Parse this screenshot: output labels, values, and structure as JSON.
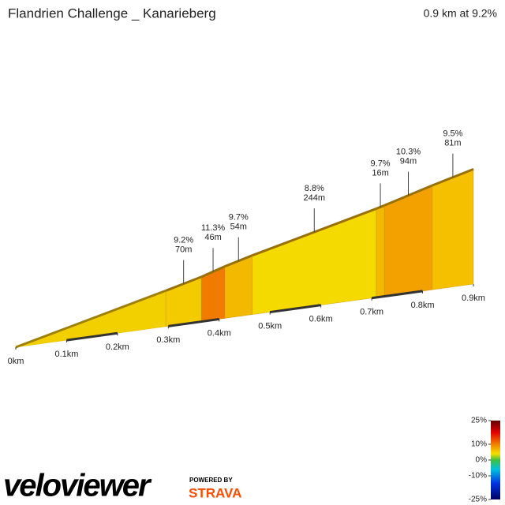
{
  "chart_data": {
    "type": "profile",
    "title": "Flandrien Challenge _ Kanarieberg",
    "subtitle": "0.9 km at 9.2%",
    "xticks": [
      {
        "value": 0,
        "label": "0km"
      },
      {
        "value": 100,
        "label": "0.1km"
      },
      {
        "value": 200,
        "label": "0.2km"
      },
      {
        "value": 300,
        "label": "0.3km"
      },
      {
        "value": 400,
        "label": "0.4km"
      },
      {
        "value": 500,
        "label": "0.5km"
      },
      {
        "value": 600,
        "label": "0.6km"
      },
      {
        "value": 700,
        "label": "0.7km"
      },
      {
        "value": 800,
        "label": "0.8km"
      },
      {
        "value": 900,
        "label": "0.9km"
      }
    ],
    "xlim": [
      0,
      900
    ],
    "segments": {
      "gradients": [
        9.2,
        11.3,
        9.7,
        8.8,
        9.7,
        10.3,
        9.5
      ],
      "gradient_labels": [
        "9.2%",
        "11.3%",
        "9.7%",
        "8.8%",
        "9.7%",
        "10.3%",
        "9.5%"
      ],
      "lengths": [
        70,
        46,
        54,
        244,
        16,
        94,
        81
      ],
      "length_labels": [
        "70m",
        "46m",
        "54m",
        "244m",
        "16m",
        "94m",
        "81m"
      ]
    },
    "legend_ticks": [
      {
        "value": 25,
        "label": "25%"
      },
      {
        "value": 10,
        "label": "10%"
      },
      {
        "value": 0,
        "label": "0%"
      },
      {
        "value": -10,
        "label": "-10%"
      },
      {
        "value": -25,
        "label": "-25%"
      }
    ]
  },
  "brand": {
    "logo": "veloviewer",
    "powered": "POWERED BY",
    "partner": "STRAVA"
  }
}
